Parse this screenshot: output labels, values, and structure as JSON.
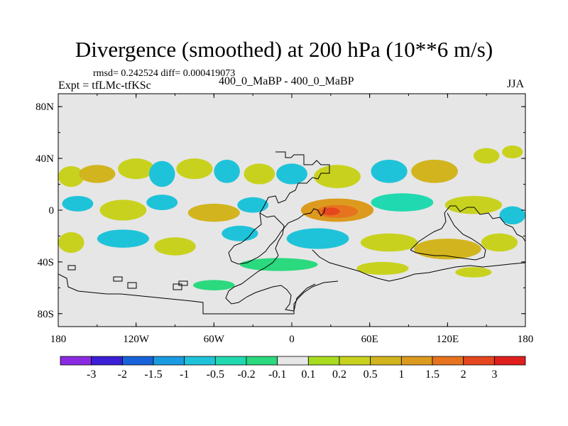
{
  "title": "Divergence (smoothed) at 200 hPa (10**6 m/s)",
  "stats": "rmsd= 0.242524 diff= 0.000419073",
  "experiment": "Expt = tfLMc-tfKSc",
  "runs": "400_0_MaBP - 400_0_MaBP",
  "season": "JJA",
  "axes": {
    "lat_ticks": [
      {
        "label": "80N",
        "lat": 80
      },
      {
        "label": "40N",
        "lat": 40
      },
      {
        "label": "0",
        "lat": 0
      },
      {
        "label": "40S",
        "lat": -40
      },
      {
        "label": "80S",
        "lat": -80
      }
    ],
    "lon_ticks": [
      {
        "label": "180",
        "lon": -180
      },
      {
        "label": "120W",
        "lon": -120
      },
      {
        "label": "60W",
        "lon": -60
      },
      {
        "label": "0",
        "lon": 0
      },
      {
        "label": "60E",
        "lon": 60
      },
      {
        "label": "120E",
        "lon": 120
      },
      {
        "label": "180",
        "lon": 180
      }
    ],
    "lon_range": [
      -180,
      180
    ],
    "lat_range": [
      -90,
      90
    ]
  },
  "colorbar": {
    "colors": [
      "#8a2be2",
      "#3b1fd6",
      "#1863d9",
      "#1a9be0",
      "#1fc3d9",
      "#20d9b0",
      "#2bd97e",
      "#e6e6e6",
      "#a8dc1e",
      "#c8d21e",
      "#d2b41e",
      "#dc9a1e",
      "#e6731e",
      "#e4461e",
      "#e01e1e"
    ],
    "labels": [
      "-3",
      "-2",
      "-1.5",
      "-1",
      "-0.5",
      "-0.2",
      "-0.1",
      "0.1",
      "0.2",
      "0.5",
      "1",
      "1.5",
      "2",
      "3"
    ]
  },
  "field_blobs": [
    {
      "lon": -170,
      "lat": 26,
      "rlon": 10,
      "rlat": 8,
      "level": 9
    },
    {
      "lon": -150,
      "lat": 28,
      "rlon": 14,
      "rlat": 7,
      "level": 10
    },
    {
      "lon": -120,
      "lat": 32,
      "rlon": 14,
      "rlat": 8,
      "level": 9
    },
    {
      "lon": -100,
      "lat": 28,
      "rlon": 10,
      "rlat": 10,
      "level": 4
    },
    {
      "lon": -75,
      "lat": 32,
      "rlon": 14,
      "rlat": 8,
      "level": 9
    },
    {
      "lon": -50,
      "lat": 30,
      "rlon": 10,
      "rlat": 9,
      "level": 4
    },
    {
      "lon": -25,
      "lat": 28,
      "rlon": 12,
      "rlat": 8,
      "level": 9
    },
    {
      "lon": 0,
      "lat": 28,
      "rlon": 12,
      "rlat": 8,
      "level": 4
    },
    {
      "lon": 35,
      "lat": 26,
      "rlon": 18,
      "rlat": 9,
      "level": 9
    },
    {
      "lon": 75,
      "lat": 30,
      "rlon": 14,
      "rlat": 9,
      "level": 4
    },
    {
      "lon": 110,
      "lat": 30,
      "rlon": 18,
      "rlat": 9,
      "level": 10
    },
    {
      "lon": 150,
      "lat": 42,
      "rlon": 10,
      "rlat": 6,
      "level": 9
    },
    {
      "lon": 170,
      "lat": 45,
      "rlon": 8,
      "rlat": 5,
      "level": 9
    },
    {
      "lon": -165,
      "lat": 5,
      "rlon": 12,
      "rlat": 6,
      "level": 4
    },
    {
      "lon": -130,
      "lat": 0,
      "rlon": 18,
      "rlat": 8,
      "level": 9
    },
    {
      "lon": -100,
      "lat": 6,
      "rlon": 12,
      "rlat": 6,
      "level": 4
    },
    {
      "lon": -60,
      "lat": -2,
      "rlon": 20,
      "rlat": 7,
      "level": 10
    },
    {
      "lon": -30,
      "lat": 4,
      "rlon": 12,
      "rlat": 6,
      "level": 4
    },
    {
      "lon": 35,
      "lat": 0,
      "rlon": 28,
      "rlat": 9,
      "level": 11
    },
    {
      "lon": 35,
      "lat": -1,
      "rlon": 16,
      "rlat": 5,
      "level": 12
    },
    {
      "lon": 30,
      "lat": -1,
      "rlon": 7,
      "rlat": 3,
      "level": 13
    },
    {
      "lon": 85,
      "lat": 6,
      "rlon": 24,
      "rlat": 7,
      "level": 5
    },
    {
      "lon": 140,
      "lat": 4,
      "rlon": 22,
      "rlat": 7,
      "level": 9
    },
    {
      "lon": 170,
      "lat": -4,
      "rlon": 10,
      "rlat": 7,
      "level": 4
    },
    {
      "lon": -170,
      "lat": -25,
      "rlon": 10,
      "rlat": 8,
      "level": 9
    },
    {
      "lon": -130,
      "lat": -22,
      "rlon": 20,
      "rlat": 7,
      "level": 4
    },
    {
      "lon": -90,
      "lat": -28,
      "rlon": 16,
      "rlat": 7,
      "level": 9
    },
    {
      "lon": -40,
      "lat": -18,
      "rlon": 14,
      "rlat": 6,
      "level": 4
    },
    {
      "lon": 20,
      "lat": -22,
      "rlon": 24,
      "rlat": 8,
      "level": 4
    },
    {
      "lon": 75,
      "lat": -25,
      "rlon": 22,
      "rlat": 7,
      "level": 9
    },
    {
      "lon": 120,
      "lat": -30,
      "rlon": 26,
      "rlat": 8,
      "level": 10
    },
    {
      "lon": 160,
      "lat": -25,
      "rlon": 14,
      "rlat": 7,
      "level": 9
    },
    {
      "lon": -10,
      "lat": -42,
      "rlon": 30,
      "rlat": 5,
      "level": 6
    },
    {
      "lon": 70,
      "lat": -45,
      "rlon": 20,
      "rlat": 5,
      "level": 9
    },
    {
      "lon": 140,
      "lat": -48,
      "rlon": 14,
      "rlat": 4,
      "level": 9
    },
    {
      "lon": -60,
      "lat": -58,
      "rlon": 16,
      "rlat": 4,
      "level": 6
    }
  ]
}
